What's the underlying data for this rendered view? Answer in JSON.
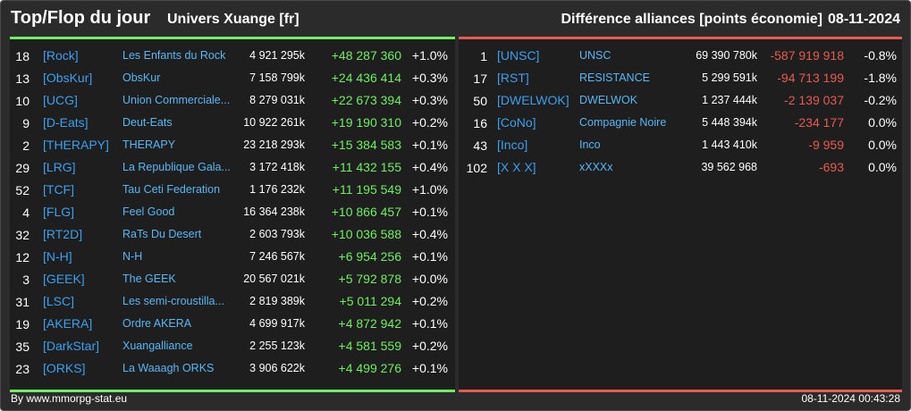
{
  "header": {
    "title": "Top/Flop du jour",
    "universe": "Univers Xuange [fr]",
    "subtitle": "Différence alliances [points économie]",
    "date": "08-11-2024"
  },
  "top": [
    {
      "rank": "18",
      "tag": "[Rock]",
      "name": "Les Enfants du Rock",
      "points": "4 921 295k",
      "diff": "+48 287 360",
      "pct": "+1.0%"
    },
    {
      "rank": "13",
      "tag": "[ObsKur]",
      "name": "ObsKur",
      "points": "7 158 799k",
      "diff": "+24 436 414",
      "pct": "+0.3%"
    },
    {
      "rank": "10",
      "tag": "[UCG]",
      "name": "Union Commerciale...",
      "points": "8 279 031k",
      "diff": "+22 673 394",
      "pct": "+0.3%"
    },
    {
      "rank": "9",
      "tag": "[D-Eats]",
      "name": "Deut-Eats",
      "points": "10 922 261k",
      "diff": "+19 190 310",
      "pct": "+0.2%"
    },
    {
      "rank": "2",
      "tag": "[THERAPY]",
      "name": "THERAPY",
      "points": "23 218 293k",
      "diff": "+15 384 583",
      "pct": "+0.1%"
    },
    {
      "rank": "29",
      "tag": "[LRG]",
      "name": "La Republique Gala...",
      "points": "3 172 418k",
      "diff": "+11 432 155",
      "pct": "+0.4%"
    },
    {
      "rank": "52",
      "tag": "[TCF]",
      "name": "Tau Ceti Federation",
      "points": "1 176 232k",
      "diff": "+11 195 549",
      "pct": "+1.0%"
    },
    {
      "rank": "4",
      "tag": "[FLG]",
      "name": "Feel Good",
      "points": "16 364 238k",
      "diff": "+10 866 457",
      "pct": "+0.1%"
    },
    {
      "rank": "32",
      "tag": "[RT2D]",
      "name": "RaTs Du Desert",
      "points": "2 603 793k",
      "diff": "+10 036 588",
      "pct": "+0.4%"
    },
    {
      "rank": "12",
      "tag": "[N-H]",
      "name": "N-H",
      "points": "7 246 567k",
      "diff": "+6 954 256",
      "pct": "+0.1%"
    },
    {
      "rank": "3",
      "tag": "[GEEK]",
      "name": "The GEEK",
      "points": "20 567 021k",
      "diff": "+5 792 878",
      "pct": "+0.0%"
    },
    {
      "rank": "31",
      "tag": "[LSC]",
      "name": "Les semi-croustilla...",
      "points": "2 819 389k",
      "diff": "+5 011 294",
      "pct": "+0.2%"
    },
    {
      "rank": "19",
      "tag": "[AKERA]",
      "name": "Ordre AKERA",
      "points": "4 699 917k",
      "diff": "+4 872 942",
      "pct": "+0.1%"
    },
    {
      "rank": "35",
      "tag": "[DarkStar]",
      "name": "Xuangalliance",
      "points": "2 255 123k",
      "diff": "+4 581 559",
      "pct": "+0.2%"
    },
    {
      "rank": "23",
      "tag": "[ORKS]",
      "name": "La Waaagh ORKS",
      "points": "3 906 622k",
      "diff": "+4 499 276",
      "pct": "+0.1%"
    }
  ],
  "flop": [
    {
      "rank": "1",
      "tag": "[UNSC]",
      "name": "UNSC",
      "points": "69 390 780k",
      "diff": "-587 919 918",
      "pct": "-0.8%"
    },
    {
      "rank": "17",
      "tag": "[RST]",
      "name": "RESISTANCE",
      "points": "5 299 591k",
      "diff": "-94 713 199",
      "pct": "-1.8%"
    },
    {
      "rank": "50",
      "tag": "[DWELWOK]",
      "name": "DWELWOK",
      "points": "1 237 444k",
      "diff": "-2 139 037",
      "pct": "-0.2%"
    },
    {
      "rank": "16",
      "tag": "[CoNo]",
      "name": "Compagnie Noire",
      "points": "5 448 394k",
      "diff": "-234 177",
      "pct": "0.0%"
    },
    {
      "rank": "43",
      "tag": "[Inco]",
      "name": "Inco",
      "points": "1 443 410k",
      "diff": "-9 959",
      "pct": "0.0%"
    },
    {
      "rank": "102",
      "tag": "[X X X]",
      "name": "xXXXx",
      "points": "39 562 968",
      "diff": "-693",
      "pct": "0.0%"
    }
  ],
  "footer": {
    "source": "By www.mmorpg-stat.eu",
    "timestamp": "08-11-2024 00:43:28"
  },
  "colors": {
    "gain": "#6ef060",
    "loss": "#e85a50",
    "tag": "#3aa0f0",
    "name": "#58b7f5"
  }
}
